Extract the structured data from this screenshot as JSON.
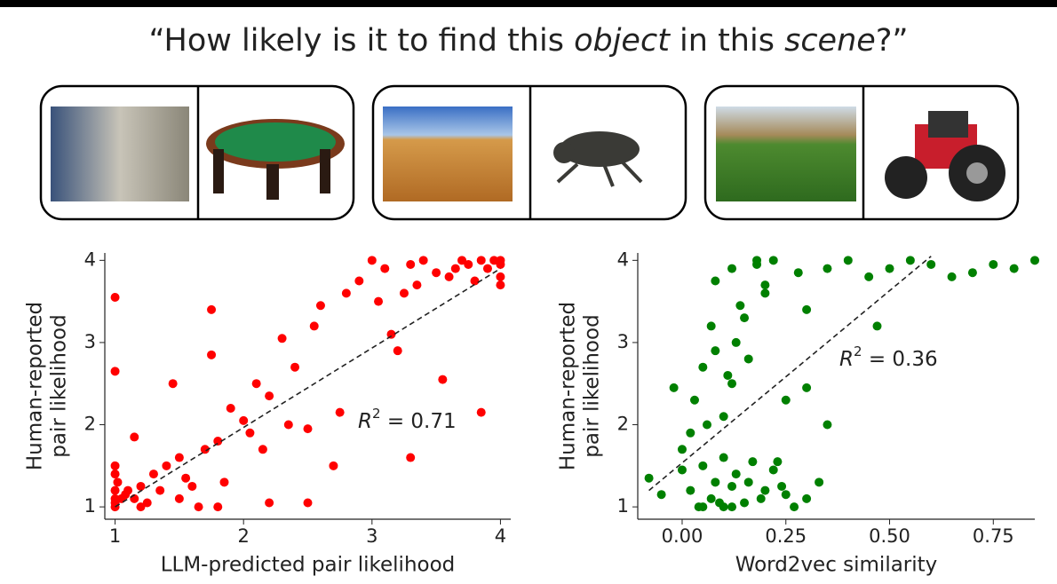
{
  "title_segments": [
    {
      "text": "“How likely is it to find this "
    },
    {
      "text": "object",
      "italic": true
    },
    {
      "text": " in this "
    },
    {
      "text": "scene",
      "italic": true
    },
    {
      "text": "?”"
    }
  ],
  "chart_data": [
    {
      "type": "scatter",
      "xlabel": "LLM-predicted pair likelihood",
      "ylabel": [
        "Human-reported",
        "pair likelihood"
      ],
      "color": "#ff0000",
      "annotation": {
        "symbol": "R",
        "exponent": "2",
        "text": " = 0.71"
      },
      "xlim": [
        0.92,
        4.08
      ],
      "ylim": [
        0.85,
        4.09
      ],
      "xticks": [
        1,
        2,
        3,
        4
      ],
      "yticks": [
        1,
        2,
        3,
        4
      ],
      "fit_line": {
        "x": [
          1,
          4
        ],
        "y": [
          1.0,
          3.9
        ]
      },
      "x": [
        1,
        1,
        1,
        1,
        1,
        1,
        1.02,
        1.05,
        1.08,
        1.1,
        1.15,
        1.2,
        1.25,
        1.3,
        1.35,
        1.4,
        1.45,
        1.5,
        1.55,
        1.6,
        1.65,
        1.7,
        1.75,
        1.8,
        1.85,
        1.9,
        2,
        2.05,
        2.1,
        2.15,
        2.2,
        2.3,
        2.35,
        2.4,
        2.5,
        2.55,
        2.6,
        2.7,
        2.75,
        2.8,
        2.9,
        3,
        3.05,
        3.1,
        3.15,
        3.2,
        3.25,
        3.3,
        3.35,
        3.4,
        3.5,
        3.55,
        3.6,
        3.65,
        3.7,
        3.75,
        3.8,
        3.85,
        3.9,
        3.95,
        4,
        4,
        4,
        4,
        1,
        1,
        1.2,
        1.8,
        2.2,
        3.85,
        1.15,
        1.5,
        1.75,
        2.5,
        3.3
      ],
      "values": [
        1.05,
        1.2,
        1.5,
        2.65,
        3.55,
        1.1,
        1.3,
        1.1,
        1.15,
        1.2,
        1.1,
        1.25,
        1.05,
        1.4,
        1.2,
        1.5,
        2.5,
        1.6,
        1.35,
        1.25,
        1.0,
        1.7,
        3.4,
        1.8,
        1.3,
        2.2,
        2.05,
        1.9,
        2.5,
        1.7,
        2.35,
        3.05,
        2.0,
        2.7,
        1.95,
        3.2,
        3.45,
        1.5,
        2.15,
        3.6,
        3.75,
        4.0,
        3.5,
        3.9,
        3.1,
        2.9,
        3.6,
        3.95,
        3.7,
        4.0,
        3.85,
        2.55,
        3.8,
        3.9,
        4.0,
        3.95,
        3.75,
        4.0,
        3.9,
        4.0,
        3.8,
        3.95,
        3.7,
        4.0,
        1.4,
        1.0,
        1.0,
        1.0,
        1.05,
        2.15,
        1.85,
        1.1,
        2.85,
        1.05,
        1.6
      ]
    },
    {
      "type": "scatter",
      "xlabel": "Word2vec similarity",
      "ylabel": [
        "Human-reported",
        "pair likelihood"
      ],
      "color": "#008000",
      "annotation": {
        "symbol": "R",
        "exponent": "2",
        "text": " = 0.36"
      },
      "xlim": [
        -0.107,
        0.85
      ],
      "ylim": [
        0.85,
        4.09
      ],
      "xticks": [
        {
          "value": 0,
          "label": "0.00"
        },
        {
          "value": 0.25,
          "label": "0.25"
        },
        {
          "value": 0.5,
          "label": "0.50"
        },
        {
          "value": 0.75,
          "label": "0.75"
        }
      ],
      "yticks": [
        1,
        2,
        3,
        4
      ],
      "fit_line": {
        "x": [
          -0.08,
          0.6
        ],
        "y": [
          1.2,
          4.05
        ]
      },
      "x": [
        -0.08,
        -0.05,
        -0.02,
        0,
        0.02,
        0.03,
        0.05,
        0.05,
        0.07,
        0.08,
        0.08,
        0.1,
        0.1,
        0.12,
        0.12,
        0.13,
        0.15,
        0.15,
        0.17,
        0.18,
        0.2,
        0.2,
        0.22,
        0.25,
        0.3,
        0.02,
        0.05,
        0.07,
        0.1,
        0.12,
        0.14,
        0.16,
        0.2,
        0.22,
        0.25,
        0.28,
        0.3,
        0.35,
        0.4,
        0.45,
        0.5,
        0.55,
        0.6,
        0.65,
        0.7,
        0.75,
        0.8,
        0.85,
        0.0,
        0.06,
        0.09,
        0.11,
        0.13,
        0.16,
        0.19,
        0.24,
        0.3,
        0.35,
        0.04,
        0.08,
        0.12,
        0.18,
        0.23,
        0.27,
        0.33,
        0.47
      ],
      "values": [
        1.35,
        1.15,
        2.45,
        1.7,
        1.2,
        2.3,
        1.0,
        1.5,
        1.1,
        1.3,
        3.75,
        1.0,
        1.6,
        1.25,
        3.9,
        1.4,
        1.05,
        3.3,
        1.55,
        4.0,
        1.2,
        3.6,
        1.45,
        1.15,
        1.1,
        1.9,
        2.7,
        3.2,
        2.1,
        2.5,
        3.45,
        2.8,
        3.7,
        4.0,
        2.3,
        3.85,
        3.4,
        3.9,
        4.0,
        3.8,
        3.9,
        4.0,
        3.95,
        3.8,
        3.85,
        3.95,
        3.9,
        4.0,
        1.45,
        2.0,
        1.05,
        2.6,
        3.0,
        1.3,
        1.1,
        1.25,
        2.45,
        2.0,
        1.0,
        2.9,
        1.0,
        3.95,
        1.55,
        1.0,
        1.3,
        3.2
      ]
    }
  ]
}
